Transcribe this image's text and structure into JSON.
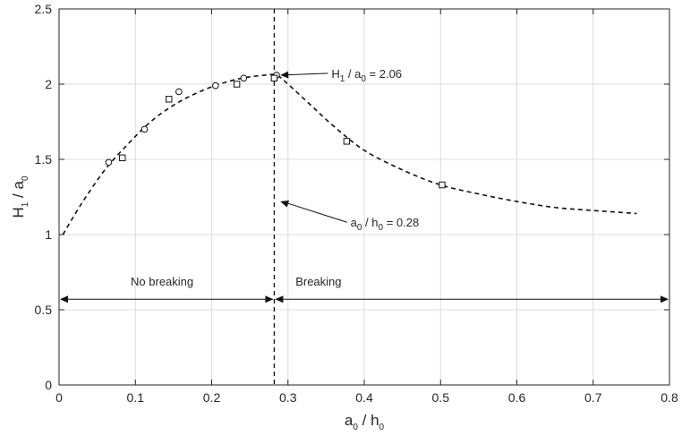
{
  "chart_data": {
    "type": "scatter",
    "xlabel": {
      "main": "a",
      "sub1": "0",
      "mid": " / h",
      "sub2": "0"
    },
    "ylabel": {
      "main": "H",
      "sub1": "1",
      "mid": " / a",
      "sub2": "0"
    },
    "xlim": [
      0,
      0.8
    ],
    "ylim": [
      0,
      2.5
    ],
    "xticks": [
      0,
      0.1,
      0.2,
      0.3,
      0.4,
      0.5,
      0.6,
      0.7,
      0.8
    ],
    "xtick_labels": [
      "0",
      "0.1",
      "0.2",
      "0.3",
      "0.4",
      "0.5",
      "0.6",
      "0.7",
      "0.8"
    ],
    "yticks": [
      0,
      0.5,
      1,
      1.5,
      2,
      2.5
    ],
    "ytick_labels": [
      "0",
      "0.5",
      "1",
      "1.5",
      "2",
      "2.5"
    ],
    "grid": true,
    "series": [
      {
        "marker": "circle",
        "points": [
          [
            0.065,
            1.48
          ],
          [
            0.112,
            1.7
          ],
          [
            0.157,
            1.95
          ],
          [
            0.205,
            1.99
          ],
          [
            0.242,
            2.04
          ],
          [
            0.285,
            2.06
          ]
        ]
      },
      {
        "marker": "square",
        "points": [
          [
            0.083,
            1.51
          ],
          [
            0.144,
            1.9
          ],
          [
            0.233,
            2.0
          ],
          [
            0.282,
            2.04
          ],
          [
            0.377,
            1.62
          ],
          [
            0.502,
            1.33
          ]
        ]
      },
      {
        "style": "dashed-line",
        "points": [
          [
            0.005,
            1.0
          ],
          [
            0.03,
            1.21
          ],
          [
            0.06,
            1.43
          ],
          [
            0.09,
            1.6
          ],
          [
            0.12,
            1.75
          ],
          [
            0.15,
            1.86
          ],
          [
            0.18,
            1.94
          ],
          [
            0.21,
            2.0
          ],
          [
            0.24,
            2.04
          ],
          [
            0.27,
            2.06
          ],
          [
            0.285,
            2.06
          ],
          [
            0.3,
            2.0
          ],
          [
            0.33,
            1.86
          ],
          [
            0.36,
            1.72
          ],
          [
            0.4,
            1.56
          ],
          [
            0.45,
            1.43
          ],
          [
            0.5,
            1.33
          ],
          [
            0.55,
            1.27
          ],
          [
            0.6,
            1.22
          ],
          [
            0.65,
            1.18
          ],
          [
            0.7,
            1.16
          ],
          [
            0.757,
            1.14
          ]
        ]
      }
    ],
    "vertical_line": {
      "x": 0.282,
      "style": "dashed"
    },
    "regions": [
      {
        "label": "No breaking",
        "x_from": 0.0,
        "x_to": 0.282,
        "y": 0.57,
        "label_x": 0.135,
        "label_y": 0.69
      },
      {
        "label": "Breaking",
        "x_from": 0.282,
        "x_to": 0.8,
        "y": 0.57,
        "label_x": 0.34,
        "label_y": 0.69
      }
    ],
    "annotations": [
      {
        "main": "H",
        "sub1": "1",
        "mid": " / a",
        "sub2": "0",
        "tail": " = 2.06",
        "text_at": [
          0.357,
          2.06
        ],
        "arrow_to": [
          0.29,
          2.06
        ]
      },
      {
        "main": "a",
        "sub1": "0",
        "mid": " / h",
        "sub2": "0",
        "tail": " = 0.28",
        "text_at": [
          0.382,
          1.07
        ],
        "arrow_to": [
          0.29,
          1.22
        ]
      }
    ]
  }
}
